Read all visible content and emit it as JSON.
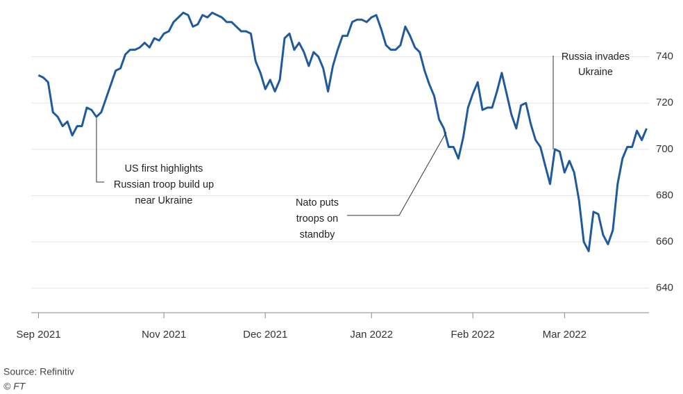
{
  "chart_data": {
    "type": "line",
    "source": "Source: Refinitiv",
    "credit": "© FT",
    "annotations": [
      [
        "US first highlights",
        "Russian troop build up",
        "near Ukraine"
      ],
      [
        "Nato puts",
        "troops on",
        "standby"
      ],
      [
        "Russia invades",
        "Ukraine"
      ]
    ],
    "series": [
      {
        "color": "#1f5a9c",
        "values": [
          732,
          731,
          729,
          716,
          714,
          710,
          712,
          706,
          710,
          710,
          718,
          717,
          714,
          716,
          722,
          728,
          734,
          735,
          741,
          743,
          743,
          744,
          746,
          744,
          748,
          747,
          750,
          751,
          755,
          757,
          759,
          758,
          753,
          754,
          758,
          757,
          759,
          758,
          757,
          755,
          755,
          753,
          751,
          751,
          750,
          738,
          733,
          726,
          730,
          725,
          730,
          748,
          750,
          743,
          746,
          742,
          736,
          742,
          740,
          735,
          725,
          736,
          743,
          749,
          749,
          755,
          756,
          756,
          755,
          757,
          758,
          752,
          745,
          743,
          743,
          745,
          753,
          749,
          744,
          742,
          734,
          728,
          723,
          713,
          709,
          701,
          701,
          696,
          705,
          718,
          724,
          729,
          717,
          718,
          718,
          725,
          733,
          724,
          715,
          709,
          719,
          720,
          711,
          704,
          701,
          693,
          685,
          700,
          699,
          690,
          695,
          690,
          678,
          660,
          656,
          673,
          672,
          663,
          659,
          665,
          685,
          696,
          701,
          701,
          708,
          704,
          709
        ]
      }
    ],
    "xlim": [
      -1.5,
      126.5
    ],
    "xticks": [
      {
        "value": 0,
        "label": "Sep 2021"
      },
      {
        "value": 26,
        "label": "Nov 2021"
      },
      {
        "value": 47,
        "label": "Dec 2021"
      },
      {
        "value": 69,
        "label": "Jan 2022"
      },
      {
        "value": 90,
        "label": "Feb 2022"
      },
      {
        "value": 109,
        "label": "Mar 2022"
      }
    ],
    "ylim": [
      630,
      760
    ],
    "yticks": [
      640,
      660,
      680,
      700,
      720,
      740
    ],
    "grid": true
  }
}
